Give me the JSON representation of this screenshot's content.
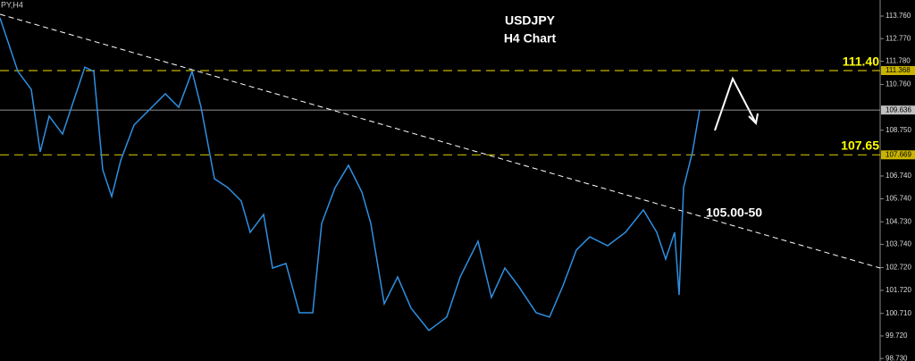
{
  "chart_data": {
    "type": "line",
    "title": "USDJPY",
    "subtitle": "H4 Chart",
    "symbol_label": "PY,H4",
    "annotations": [
      "111.40",
      "107.65",
      "105.00-50"
    ],
    "xlim": [
      0,
      98.5
    ],
    "ylim": [
      98.62,
      114.466
    ],
    "yticks": [
      {
        "value": 113.76,
        "label": "113.760"
      },
      {
        "value": 112.77,
        "label": "112.770"
      },
      {
        "value": 111.78,
        "label": "111.780"
      },
      {
        "value": 110.76,
        "label": "110.760"
      },
      {
        "value": 108.75,
        "label": "108.750"
      },
      {
        "value": 106.74,
        "label": "106.740"
      },
      {
        "value": 105.74,
        "label": "105.740"
      },
      {
        "value": 104.73,
        "label": "104.730"
      },
      {
        "value": 103.74,
        "label": "103.740"
      },
      {
        "value": 102.72,
        "label": "102.720"
      },
      {
        "value": 101.72,
        "label": "101.720"
      },
      {
        "value": 100.71,
        "label": "100.710"
      },
      {
        "value": 99.72,
        "label": "99.720"
      },
      {
        "value": 98.73,
        "label": "98.730"
      }
    ],
    "hlines": [
      {
        "value": 111.368,
        "label": "111.368",
        "color": "#c8b400"
      },
      {
        "value": 109.636,
        "label": "109.636",
        "color": "#c0c0c0"
      },
      {
        "value": 107.669,
        "label": "107.669",
        "color": "#c8b400"
      }
    ],
    "trendline": {
      "x": [
        0,
        98.5
      ],
      "values": [
        113.84,
        102.7
      ],
      "color": "#ffffff"
    },
    "series": [
      {
        "name": "USDJPY",
        "color": "#2f8fe0",
        "x": [
          0,
          2,
          3.5,
          4.5,
          5.5,
          7,
          8,
          9.5,
          10.5,
          11.5,
          12.5,
          13.5,
          15,
          17,
          18.5,
          20,
          21.5,
          22.5,
          24,
          25.5,
          27,
          28,
          29.5,
          30.5,
          32,
          33.5,
          35,
          36,
          37.5,
          39,
          40.5,
          41.5,
          43,
          44.5,
          46,
          48,
          50,
          51.5,
          53.5,
          55,
          56.5,
          58,
          60,
          61.5,
          63,
          64.5,
          66,
          68,
          70,
          72,
          73.5,
          74.5,
          75.5,
          76,
          76.5,
          77.5,
          78.3
        ],
        "values": [
          113.68,
          111.33,
          110.54,
          107.8,
          109.37,
          108.58,
          109.76,
          111.52,
          111.33,
          107.01,
          105.84,
          107.41,
          108.98,
          109.76,
          110.35,
          109.76,
          111.33,
          109.76,
          106.62,
          106.23,
          105.64,
          104.27,
          105.05,
          102.7,
          102.9,
          100.74,
          100.74,
          104.66,
          106.23,
          107.21,
          106.03,
          104.66,
          101.13,
          102.31,
          100.94,
          99.96,
          100.55,
          102.31,
          103.88,
          101.41,
          102.7,
          101.92,
          100.74,
          100.55,
          101.92,
          103.49,
          104.07,
          103.68,
          104.27,
          105.25,
          104.27,
          103.09,
          104.27,
          101.52,
          106.23,
          107.8,
          109.64
        ]
      }
    ]
  }
}
